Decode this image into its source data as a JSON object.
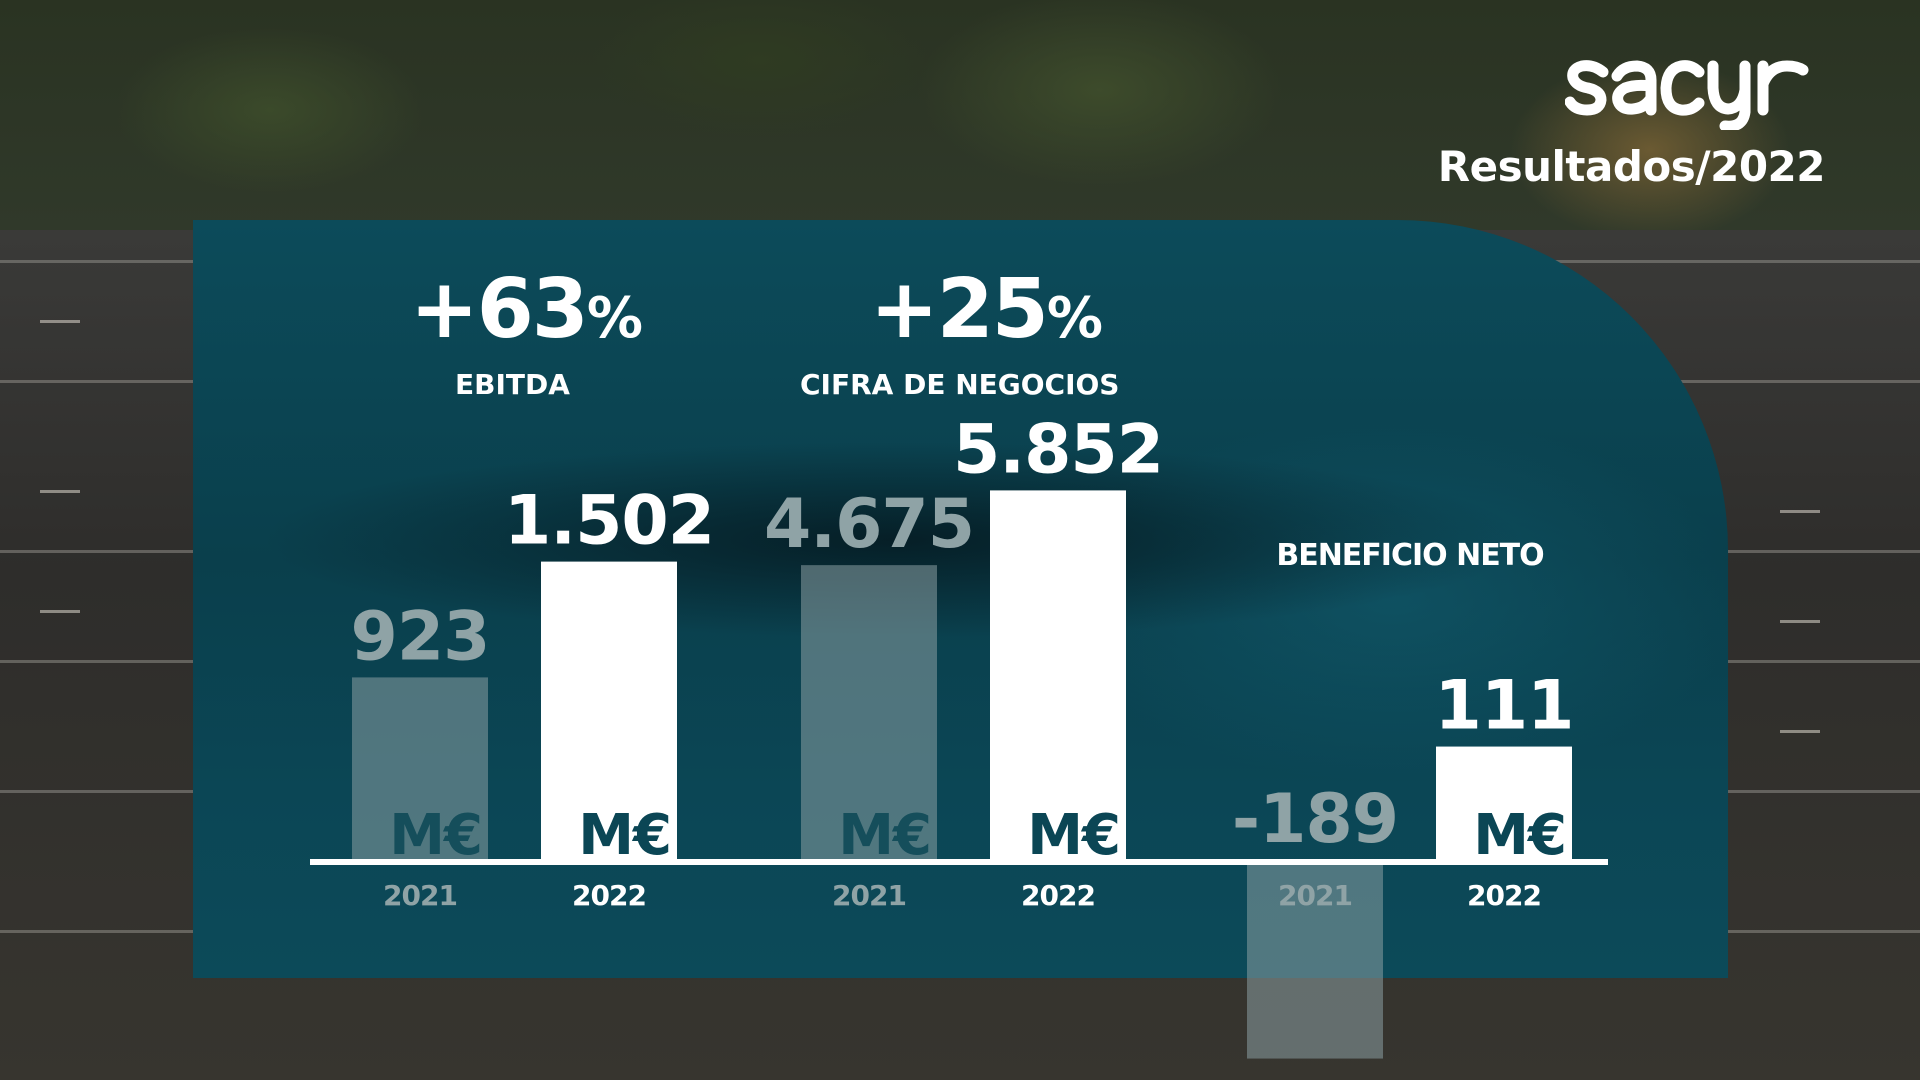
{
  "brand": {
    "logo_text": "sacyr",
    "subtitle": "Resultados/2022"
  },
  "kpis": [
    {
      "value": "+63",
      "unit": "%",
      "label": "EBITDA"
    },
    {
      "value": "+25",
      "unit": "%",
      "label": "CIFRA DE NEGOCIOS"
    }
  ],
  "chart_data": {
    "type": "bar",
    "unit": "M€",
    "groups": [
      {
        "name": "",
        "bars": [
          {
            "year": "2021",
            "value": 923,
            "label": "923"
          },
          {
            "year": "2022",
            "value": 1502,
            "label": "1.502"
          }
        ]
      },
      {
        "name": "",
        "bars": [
          {
            "year": "2021",
            "value": 4675,
            "label": "4.675"
          },
          {
            "year": "2022",
            "value": 5852,
            "label": "5.852"
          }
        ]
      },
      {
        "name": "BENEFICIO NETO",
        "bars": [
          {
            "year": "2021",
            "value": -189,
            "label": "-189"
          },
          {
            "year": "2022",
            "value": 111,
            "label": "111"
          }
        ]
      }
    ]
  },
  "colors": {
    "panel": "#0b4655",
    "bar_current": "#ffffff",
    "bar_prior": "#8a9ea2",
    "text_prior": "#8fa3a6"
  }
}
